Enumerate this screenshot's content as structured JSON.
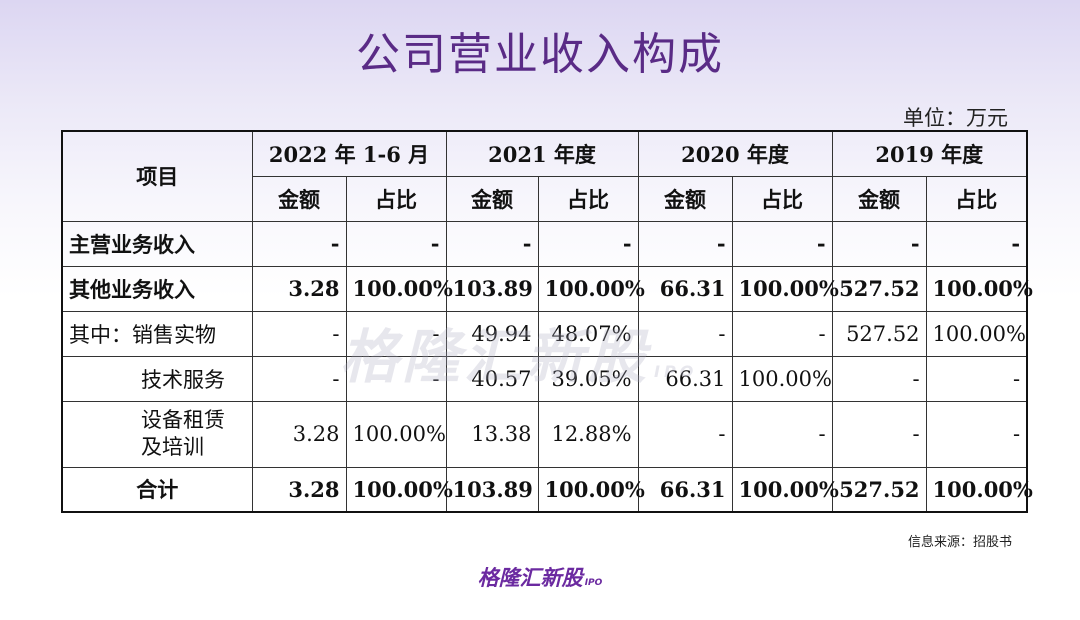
{
  "title": "公司营业收入构成",
  "unit": "单位：万元",
  "table": {
    "item_header": "项目",
    "periods": [
      "2022 年 1-6 月",
      "2021 年度",
      "2020 年度",
      "2019 年度"
    ],
    "sub_amount": "金额",
    "sub_share": "占比",
    "rows": [
      {
        "label": "主营业务收入",
        "cells": [
          "-",
          "-",
          "-",
          "-",
          "-",
          "-",
          "-",
          "-"
        ]
      },
      {
        "label": "其他业务收入",
        "cells": [
          "3.28",
          "100.00%",
          "103.89",
          "100.00%",
          "66.31",
          "100.00%",
          "527.52",
          "100.00%"
        ]
      },
      {
        "label": "其中：销售实物",
        "cells": [
          "-",
          "-",
          "49.94",
          "48.07%",
          "-",
          "-",
          "527.52",
          "100.00%"
        ]
      },
      {
        "label": "技术服务",
        "cells": [
          "-",
          "-",
          "40.57",
          "39.05%",
          "66.31",
          "100.00%",
          "-",
          "-"
        ]
      },
      {
        "label_line1": "设备租赁",
        "label_line2": "及培训",
        "cells": [
          "3.28",
          "100.00%",
          "13.38",
          "12.88%",
          "-",
          "-",
          "-",
          "-"
        ]
      },
      {
        "label": "合计",
        "cells": [
          "3.28",
          "100.00%",
          "103.89",
          "100.00%",
          "66.31",
          "100.00%",
          "527.52",
          "100.00%"
        ]
      }
    ]
  },
  "watermark": {
    "text": "格隆汇新股",
    "sub": "IPO"
  },
  "source": "信息来源：招股书",
  "logo": {
    "text": "格隆汇新股",
    "sub": "IPO"
  }
}
